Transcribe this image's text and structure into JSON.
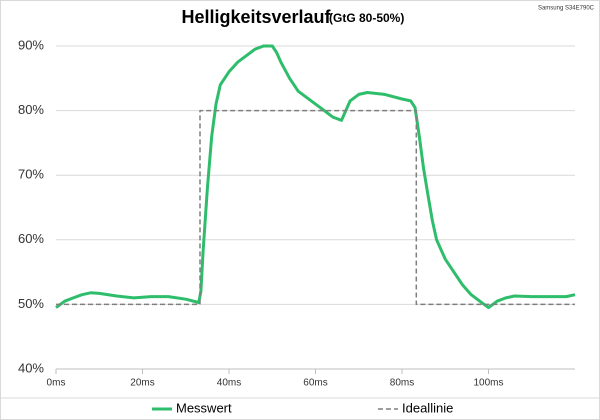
{
  "chart_data": {
    "type": "line",
    "title": "Helligkeitsverlauf",
    "subtitle": "(GtG 80-50%)",
    "annotation": "Samsung S34E790C",
    "xlim": [
      0,
      120
    ],
    "ylim": [
      40,
      90
    ],
    "xticks": [
      {
        "value": 0,
        "label": "0ms"
      },
      {
        "value": 20,
        "label": "20ms"
      },
      {
        "value": 40,
        "label": "40ms"
      },
      {
        "value": 60,
        "label": "60ms"
      },
      {
        "value": 80,
        "label": "80ms"
      },
      {
        "value": 100,
        "label": "100ms"
      }
    ],
    "yticks": [
      {
        "value": 40,
        "label": "40%"
      },
      {
        "value": 50,
        "label": "50%"
      },
      {
        "value": 60,
        "label": "60%"
      },
      {
        "value": 70,
        "label": "70%"
      },
      {
        "value": 80,
        "label": "80%"
      },
      {
        "value": 90,
        "label": "90%"
      }
    ],
    "grid": true,
    "legend": "bottom",
    "series": [
      {
        "name": "Messwert",
        "color": "#2ebd6b",
        "dash": false,
        "x": [
          0,
          2,
          4,
          6,
          8,
          10,
          14,
          18,
          22,
          26,
          30,
          33,
          33.5,
          34,
          35,
          36,
          37,
          38,
          40,
          42,
          44,
          46,
          48,
          50,
          51,
          52,
          54,
          56,
          58,
          60,
          62,
          64,
          66,
          67,
          68,
          70,
          72,
          76,
          80,
          82,
          83,
          84,
          85,
          86,
          87,
          88,
          90,
          92,
          94,
          96,
          98,
          100,
          101,
          102,
          104,
          106,
          110,
          114,
          118,
          120
        ],
        "values": [
          49.5,
          50.5,
          51,
          51.5,
          51.8,
          51.7,
          51.3,
          51,
          51.2,
          51.2,
          50.8,
          50.3,
          52,
          58,
          68,
          76,
          81,
          84,
          86,
          87.5,
          88.5,
          89.5,
          90,
          90,
          89,
          87.5,
          85,
          83,
          82,
          81,
          80,
          79,
          78.5,
          80,
          81.5,
          82.5,
          82.8,
          82.5,
          81.8,
          81.5,
          80.5,
          76,
          71,
          67,
          63,
          60,
          57,
          55,
          53,
          51.5,
          50.5,
          49.5,
          50,
          50.5,
          51,
          51.3,
          51.2,
          51.2,
          51.2,
          51.5
        ]
      },
      {
        "name": "Ideallinie",
        "color": "#7f7f7f",
        "dash": true,
        "x": [
          0,
          33.3,
          33.3,
          83.3,
          83.3,
          120
        ],
        "values": [
          50,
          50,
          80,
          80,
          50,
          50
        ]
      }
    ]
  }
}
